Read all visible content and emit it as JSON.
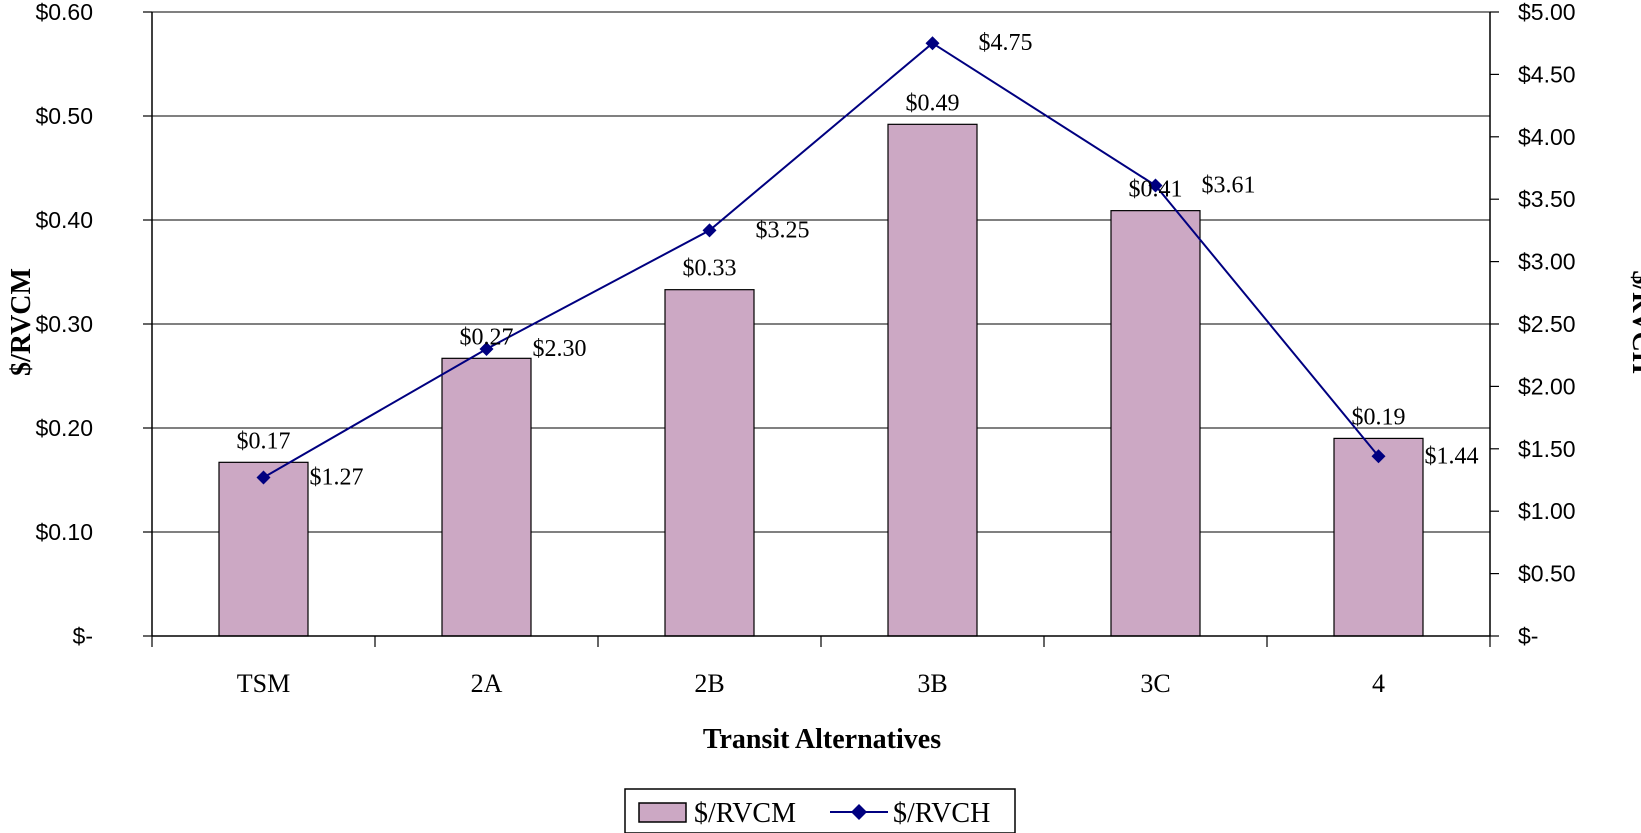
{
  "chart_data": {
    "type": "bar",
    "categories": [
      "TSM",
      "2A",
      "2B",
      "3B",
      "3C",
      "4"
    ],
    "series": [
      {
        "name": "$/RVCM",
        "type": "bar",
        "axis": "left",
        "values": [
          0.17,
          0.27,
          0.33,
          0.49,
          0.41,
          0.19
        ],
        "plotted_values": [
          0.167,
          0.267,
          0.333,
          0.492,
          0.409,
          0.19
        ],
        "labels": [
          "$0.17",
          "$0.27",
          "$0.33",
          "$0.49",
          "$0.41",
          "$0.19"
        ],
        "color": "#CCA8C4"
      },
      {
        "name": "$/RVCH",
        "type": "line",
        "axis": "right",
        "values": [
          1.27,
          2.3,
          3.25,
          4.75,
          3.61,
          1.44
        ],
        "labels": [
          "$1.27",
          "$2.30",
          "$3.25",
          "$4.75",
          "$3.61",
          "$1.44"
        ],
        "color": "#000080"
      }
    ],
    "xlabel": "Transit Alternatives",
    "ylabel": "$/RVCM",
    "y2label": "$/RVCH",
    "ylim": [
      0,
      0.6
    ],
    "y2lim": [
      0,
      5
    ],
    "yticks": [
      "$-",
      "$0.10",
      "$0.20",
      "$0.30",
      "$0.40",
      "$0.50",
      "$0.60"
    ],
    "y2ticks": [
      "$-",
      "$0.50",
      "$1.00",
      "$1.50",
      "$2.00",
      "$2.50",
      "$3.00",
      "$3.50",
      "$4.00",
      "$4.50",
      "$5.00"
    ],
    "grid": true,
    "legend": "bottom-center"
  }
}
